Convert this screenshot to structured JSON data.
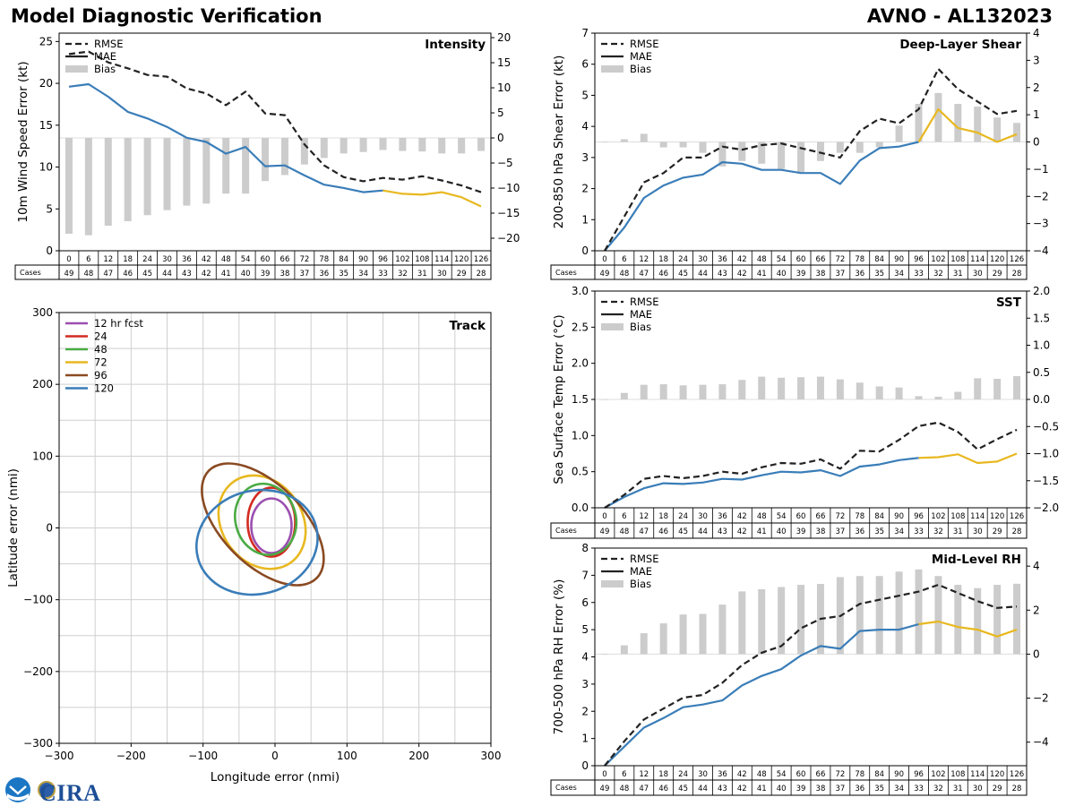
{
  "header": {
    "title": "Model Diagnostic Verification",
    "storm": "AVNO - AL132023"
  },
  "logo": {
    "name": "NOAA CIRA",
    "text": "CIRA"
  },
  "colors": {
    "line": "#3a7db8",
    "extrap": "#e8b820",
    "rmse": "#222222",
    "bias": "#cccccc",
    "grid": "#cfcfcf"
  },
  "legend_labels": [
    "RMSE",
    "MAE",
    "Bias"
  ],
  "cases_label": "Cases",
  "chart_data": [
    {
      "id": "intensity",
      "type": "line+bar",
      "title": "Intensity",
      "ylabel": "10m Wind Speed Error (kt)",
      "x": [
        0,
        6,
        12,
        18,
        24,
        30,
        36,
        42,
        48,
        54,
        60,
        66,
        72,
        78,
        84,
        90,
        96,
        102,
        108,
        114,
        120,
        126
      ],
      "ylim": [
        0,
        26
      ],
      "yticks": [
        0,
        5,
        10,
        15,
        20,
        25
      ],
      "y2lim": [
        -22.5,
        20.9
      ],
      "y2ticks": [
        -20,
        -15,
        -10,
        -5,
        0,
        5,
        10,
        15,
        20
      ],
      "rmse": [
        23.5,
        23.8,
        22.5,
        21.8,
        21.0,
        20.8,
        19.4,
        18.8,
        17.4,
        19.0,
        16.4,
        16.2,
        12.7,
        10.2,
        8.8,
        8.3,
        8.7,
        8.5,
        8.9,
        8.4,
        7.8,
        7.0
      ],
      "mae": [
        19.6,
        19.9,
        18.4,
        16.6,
        15.8,
        14.8,
        13.5,
        13.0,
        11.6,
        12.4,
        10.1,
        10.2,
        9.0,
        7.9,
        7.5,
        7.0,
        7.2,
        6.8,
        6.7,
        7.0,
        6.4,
        5.3
      ],
      "bias": [
        -19.1,
        -19.4,
        -17.5,
        -16.6,
        -15.4,
        -14.4,
        -13.5,
        -13.1,
        -11.1,
        -11.1,
        -8.6,
        -7.4,
        -5.3,
        -4.0,
        -3.1,
        -2.8,
        -2.4,
        -2.6,
        -2.7,
        -3.1,
        -3.1,
        -2.6
      ],
      "extrap_from": 16,
      "cases": [
        49,
        48,
        47,
        46,
        45,
        44,
        43,
        42,
        41,
        40,
        39,
        38,
        37,
        36,
        35,
        34,
        33,
        32,
        31,
        30,
        29,
        28
      ]
    },
    {
      "id": "shear",
      "type": "line+bar",
      "title": "Deep-Layer Shear",
      "ylabel": "200-850 hPa Shear Error (kt)",
      "x": [
        0,
        6,
        12,
        18,
        24,
        30,
        36,
        42,
        48,
        54,
        60,
        66,
        72,
        78,
        84,
        90,
        96,
        102,
        108,
        114,
        120,
        126
      ],
      "ylim": [
        0,
        7
      ],
      "yticks": [
        0,
        1,
        2,
        3,
        4,
        5,
        6,
        7
      ],
      "y2lim": [
        -4,
        4
      ],
      "y2ticks": [
        -4,
        -3,
        -2,
        -1,
        0,
        1,
        2,
        3,
        4
      ],
      "rmse": [
        0.0,
        1.1,
        2.2,
        2.5,
        3.0,
        3.0,
        3.35,
        3.25,
        3.4,
        3.45,
        3.3,
        3.15,
        3.0,
        3.85,
        4.25,
        4.1,
        4.55,
        5.85,
        5.2,
        4.8,
        4.4,
        4.5
      ],
      "mae": [
        0.0,
        0.75,
        1.7,
        2.1,
        2.35,
        2.45,
        2.85,
        2.8,
        2.6,
        2.6,
        2.5,
        2.5,
        2.15,
        2.9,
        3.3,
        3.35,
        3.5,
        4.55,
        3.95,
        3.8,
        3.5,
        3.75
      ],
      "bias": [
        0.0,
        0.1,
        0.3,
        -0.2,
        -0.2,
        -0.4,
        -0.9,
        -0.7,
        -0.8,
        -1.0,
        -1.1,
        -0.7,
        -0.4,
        -0.4,
        -0.2,
        0.6,
        1.4,
        1.8,
        1.4,
        1.3,
        0.9,
        0.7
      ],
      "extrap_from": 16,
      "cases": [
        49,
        48,
        47,
        46,
        45,
        44,
        43,
        42,
        41,
        40,
        39,
        38,
        37,
        36,
        35,
        34,
        33,
        32,
        31,
        30,
        29,
        28
      ]
    },
    {
      "id": "sst",
      "type": "line+bar",
      "title": "SST",
      "ylabel": "Sea Surface Temp Error (°C)",
      "x": [
        0,
        6,
        12,
        18,
        24,
        30,
        36,
        42,
        48,
        54,
        60,
        66,
        72,
        78,
        84,
        90,
        96,
        102,
        108,
        114,
        120,
        126
      ],
      "ylim": [
        0,
        3.0
      ],
      "yticks": [
        "0.0",
        "0.5",
        "1.0",
        "1.5",
        "2.0",
        "2.5",
        "3.0"
      ],
      "y2lim": [
        -2.0,
        2.0
      ],
      "y2ticks": [
        "−2.0",
        "−1.5",
        "−1.0",
        "−0.5",
        "0.0",
        "0.5",
        "1.0",
        "1.5",
        "2.0"
      ],
      "rmse": [
        0.0,
        0.18,
        0.4,
        0.44,
        0.41,
        0.44,
        0.5,
        0.47,
        0.56,
        0.62,
        0.61,
        0.67,
        0.54,
        0.79,
        0.78,
        0.94,
        1.13,
        1.18,
        1.05,
        0.81,
        0.95,
        1.08
      ],
      "mae": [
        0.0,
        0.15,
        0.27,
        0.34,
        0.33,
        0.35,
        0.4,
        0.39,
        0.45,
        0.5,
        0.49,
        0.52,
        0.44,
        0.57,
        0.6,
        0.66,
        0.69,
        0.7,
        0.74,
        0.62,
        0.64,
        0.75
      ],
      "bias": [
        0.0,
        0.12,
        0.27,
        0.28,
        0.26,
        0.27,
        0.28,
        0.36,
        0.42,
        0.4,
        0.41,
        0.42,
        0.37,
        0.31,
        0.24,
        0.22,
        0.06,
        0.05,
        0.14,
        0.39,
        0.38,
        0.43
      ],
      "extrap_from": 16,
      "cases": [
        49,
        48,
        47,
        46,
        45,
        44,
        43,
        42,
        41,
        40,
        39,
        38,
        37,
        36,
        35,
        34,
        33,
        32,
        31,
        30,
        29,
        28
      ]
    },
    {
      "id": "rh",
      "type": "line+bar",
      "title": "Mid-Level RH",
      "ylabel": "700-500 hPa RH Error (%)",
      "x": [
        0,
        6,
        12,
        18,
        24,
        30,
        36,
        42,
        48,
        54,
        60,
        66,
        72,
        78,
        84,
        90,
        96,
        102,
        108,
        114,
        120,
        126
      ],
      "ylim": [
        0,
        8
      ],
      "yticks": [
        0,
        1,
        2,
        3,
        4,
        5,
        6,
        7,
        8
      ],
      "y2lim": [
        -5.07,
        4.82
      ],
      "y2ticks": [
        -4,
        -2,
        0,
        2,
        4
      ],
      "rmse": [
        0.0,
        0.9,
        1.7,
        2.1,
        2.5,
        2.6,
        3.05,
        3.7,
        4.15,
        4.4,
        5.05,
        5.4,
        5.5,
        5.95,
        6.1,
        6.25,
        6.4,
        6.65,
        6.35,
        6.05,
        5.8,
        5.85
      ],
      "mae": [
        0.0,
        0.7,
        1.4,
        1.75,
        2.15,
        2.25,
        2.4,
        2.95,
        3.3,
        3.55,
        4.05,
        4.4,
        4.3,
        4.95,
        5.0,
        5.0,
        5.2,
        5.3,
        5.1,
        5.0,
        4.75,
        5.0
      ],
      "bias": [
        0.0,
        0.4,
        0.95,
        1.4,
        1.8,
        1.83,
        2.25,
        2.85,
        2.95,
        3.05,
        3.15,
        3.19,
        3.5,
        3.55,
        3.55,
        3.75,
        3.85,
        3.55,
        3.15,
        3.0,
        3.15,
        3.2
      ],
      "extrap_from": 16,
      "cases": [
        49,
        48,
        47,
        46,
        45,
        44,
        43,
        42,
        41,
        40,
        39,
        38,
        37,
        36,
        35,
        34,
        33,
        32,
        31,
        30,
        29,
        28
      ]
    },
    {
      "id": "track",
      "type": "ellipse",
      "title": "Track",
      "xlabel": "Longitude error (nmi)",
      "ylabel": "Latitude error (nmi)",
      "xlim": [
        -300,
        300
      ],
      "ylim": [
        -300,
        300
      ],
      "ticks": [
        -300,
        -200,
        -100,
        0,
        100,
        200,
        300
      ],
      "gridlines": [
        -300,
        -250,
        -200,
        -150,
        -100,
        -50,
        0,
        50,
        100,
        150,
        200,
        250,
        300
      ],
      "series": [
        {
          "label": "12 hr fcst",
          "color": "#9b4fb0",
          "cx": -5,
          "cy": 3,
          "rx": 28,
          "ry": 38,
          "angle": 0
        },
        {
          "label": "24",
          "color": "#d42a20",
          "cx": -5,
          "cy": 8,
          "rx": 33,
          "ry": 48,
          "angle": 0
        },
        {
          "label": "48",
          "color": "#4aab44",
          "cx": -13,
          "cy": 12,
          "rx": 42,
          "ry": 50,
          "angle": 15
        },
        {
          "label": "72",
          "color": "#e8b820",
          "cx": -18,
          "cy": 8,
          "rx": 56,
          "ry": 69,
          "angle": 35
        },
        {
          "label": "96",
          "color": "#8a4a22",
          "cx": -17,
          "cy": 5,
          "rx": 56,
          "ry": 106,
          "angle": 45
        },
        {
          "label": "120",
          "color": "#3a7db8",
          "cx": -25,
          "cy": -20,
          "rx": 85,
          "ry": 72,
          "angle": 15
        }
      ]
    }
  ]
}
